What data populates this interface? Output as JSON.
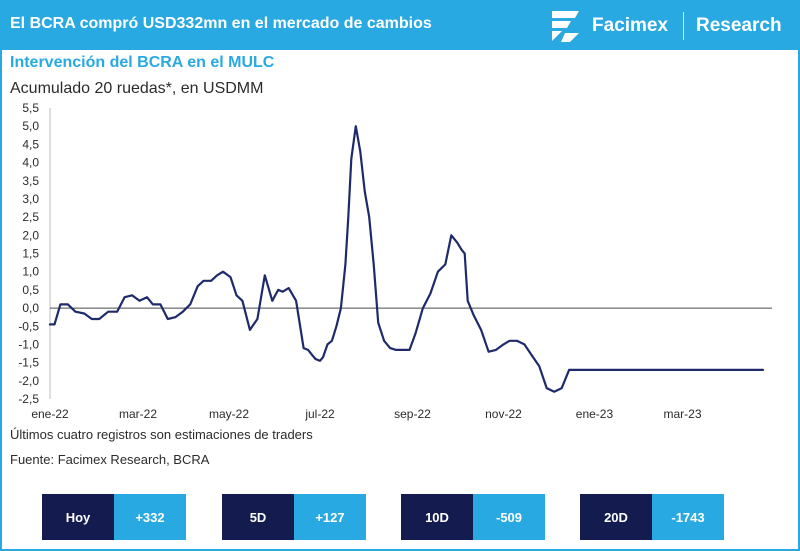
{
  "header": {
    "title": "El BCRA compró USD332mn en el mercado de cambios",
    "brand": "Facimex",
    "section": "Research",
    "logo_icon": "facimex-logo-icon"
  },
  "chart_data": {
    "type": "line",
    "title": "Intervención del BCRA en el MULC",
    "subtitle": "Acumulado 20 ruedas*, en USDMM",
    "xlabel": "",
    "ylabel": "",
    "ylim": [
      -2.5,
      5.5
    ],
    "y_ticks": [
      5.5,
      5.0,
      4.5,
      4.0,
      3.5,
      3.0,
      2.5,
      2.0,
      1.5,
      1.0,
      0.5,
      0.0,
      -0.5,
      -1.0,
      -1.5,
      -2.0,
      -2.5
    ],
    "y_tick_labels": [
      "5,5",
      "5,0",
      "4,5",
      "4,0",
      "3,5",
      "3,0",
      "2,5",
      "2,0",
      "1,5",
      "1,0",
      "0,5",
      "0,0",
      "-0,5",
      "-1,0",
      "-1,5",
      "-2,0",
      "-2,5"
    ],
    "x_ticks": [
      "2022-01-01",
      "2022-03-01",
      "2022-05-01",
      "2022-07-01",
      "2022-09-01",
      "2022-11-01",
      "2023-01-01",
      "2023-03-01"
    ],
    "x_tick_labels": [
      "ene-22",
      "mar-22",
      "may-22",
      "jul-22",
      "sep-22",
      "nov-22",
      "ene-23",
      "mar-23"
    ],
    "xlim": [
      "2022-01-01",
      "2023-04-30"
    ],
    "grid": false,
    "zero_line": true,
    "line_color": "#1f2a6b",
    "series": [
      {
        "name": "",
        "x": [
          "2022-01-01",
          "2022-01-04",
          "2022-01-08",
          "2022-01-13",
          "2022-01-18",
          "2022-01-24",
          "2022-01-29",
          "2022-02-03",
          "2022-02-09",
          "2022-02-15",
          "2022-02-20",
          "2022-02-25",
          "2022-03-02",
          "2022-03-07",
          "2022-03-11",
          "2022-03-16",
          "2022-03-21",
          "2022-03-26",
          "2022-03-31",
          "2022-04-05",
          "2022-04-10",
          "2022-04-14",
          "2022-04-19",
          "2022-04-23",
          "2022-04-27",
          "2022-05-02",
          "2022-05-06",
          "2022-05-10",
          "2022-05-15",
          "2022-05-20",
          "2022-05-25",
          "2022-05-30",
          "2022-06-03",
          "2022-06-06",
          "2022-06-10",
          "2022-06-15",
          "2022-06-20",
          "2022-06-23",
          "2022-06-26",
          "2022-06-28",
          "2022-07-01",
          "2022-07-03",
          "2022-07-06",
          "2022-07-09",
          "2022-07-12",
          "2022-07-15",
          "2022-07-18",
          "2022-07-20",
          "2022-07-22",
          "2022-07-25",
          "2022-07-28",
          "2022-07-31",
          "2022-08-03",
          "2022-08-06",
          "2022-08-09",
          "2022-08-13",
          "2022-08-17",
          "2022-08-21",
          "2022-08-26",
          "2022-08-30",
          "2022-09-03",
          "2022-09-08",
          "2022-09-13",
          "2022-09-18",
          "2022-09-23",
          "2022-09-27",
          "2022-10-01",
          "2022-10-04",
          "2022-10-06",
          "2022-10-08",
          "2022-10-12",
          "2022-10-17",
          "2022-10-22",
          "2022-10-27",
          "2022-11-01",
          "2022-11-05",
          "2022-11-10",
          "2022-11-15",
          "2022-11-20",
          "2022-11-25",
          "2022-11-30",
          "2022-12-05",
          "2022-12-10",
          "2022-12-15",
          "2022-12-20",
          "2022-12-25",
          "2022-12-30",
          "2023-01-04",
          "2023-01-09",
          "2023-01-14",
          "2023-01-19",
          "2023-01-24",
          "2023-01-28",
          "2023-02-01",
          "2023-02-05",
          "2023-02-09",
          "2023-02-13",
          "2023-02-17",
          "2023-02-21",
          "2023-02-25",
          "2023-03-01",
          "2023-03-05",
          "2023-03-09",
          "2023-03-13",
          "2023-03-17",
          "2023-03-21",
          "2023-03-26",
          "2023-03-31",
          "2023-04-04",
          "2023-04-08",
          "2023-04-12",
          "2023-04-16",
          "2023-04-20",
          "2023-04-24"
        ],
        "values": [
          -0.45,
          -0.45,
          0.1,
          0.1,
          -0.1,
          -0.15,
          -0.3,
          -0.3,
          -0.1,
          -0.1,
          0.3,
          0.35,
          0.2,
          0.3,
          0.1,
          0.1,
          -0.3,
          -0.25,
          -0.1,
          0.1,
          0.6,
          0.75,
          0.75,
          0.9,
          1.0,
          0.85,
          0.35,
          0.2,
          -0.6,
          -0.3,
          0.9,
          0.2,
          0.5,
          0.45,
          0.55,
          0.2,
          -1.1,
          -1.15,
          -1.3,
          -1.4,
          -1.45,
          -1.35,
          -1.0,
          -0.9,
          -0.5,
          0.0,
          1.2,
          2.5,
          4.1,
          5.0,
          4.3,
          3.2,
          2.5,
          1.2,
          -0.4,
          -0.9,
          -1.1,
          -1.15,
          -1.15,
          -1.15,
          -0.7,
          0.0,
          0.4,
          1.0,
          1.2,
          2.0,
          1.8,
          1.6,
          1.5,
          0.2,
          -0.2,
          -0.6,
          -1.2,
          -1.15,
          -1.0,
          -0.9,
          -0.9,
          -1.0,
          -1.3,
          -1.6,
          -2.2,
          -2.3,
          -2.2,
          -1.7,
          -1.7,
          -1.7,
          -1.7,
          -1.7,
          -1.7,
          -1.7,
          -1.7,
          -1.7,
          -1.7,
          -1.7,
          -1.7,
          -1.7,
          -1.7,
          -1.7,
          -1.7,
          -1.7,
          -1.7,
          -1.7,
          -1.7,
          -1.7,
          -1.7,
          -1.7,
          -1.7,
          -1.7,
          -1.7,
          -1.7,
          -1.7,
          -1.7,
          -1.7,
          -1.7
        ]
      }
    ]
  },
  "note": "Últimos cuatro registros son estimaciones de traders",
  "source": "Fuente: Facimex Research, BCRA",
  "stats": [
    {
      "label": "Hoy",
      "value": "+332"
    },
    {
      "label": "5D",
      "value": "+127"
    },
    {
      "label": "10D",
      "value": "-509"
    },
    {
      "label": "20D",
      "value": "-1743"
    }
  ]
}
